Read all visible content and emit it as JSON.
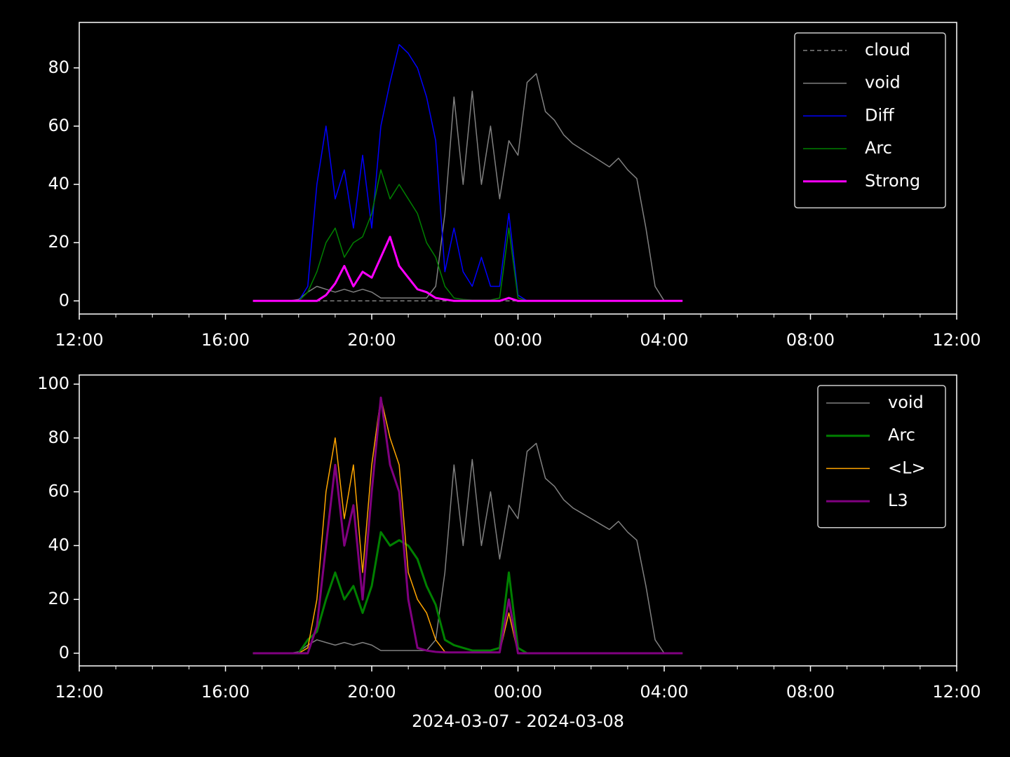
{
  "chart_data": [
    {
      "type": "line",
      "x": [
        "16:45",
        "17:00",
        "17:15",
        "17:30",
        "17:45",
        "18:00",
        "18:15",
        "18:30",
        "18:45",
        "19:00",
        "19:15",
        "19:30",
        "19:45",
        "20:00",
        "20:15",
        "20:30",
        "20:45",
        "21:00",
        "21:15",
        "21:30",
        "21:45",
        "22:00",
        "22:15",
        "22:30",
        "22:45",
        "23:00",
        "23:15",
        "23:30",
        "23:45",
        "00:00",
        "00:15",
        "00:30",
        "00:45",
        "01:00",
        "01:15",
        "01:30",
        "01:45",
        "02:00",
        "02:15",
        "02:30",
        "02:45",
        "03:00",
        "03:15",
        "03:30",
        "03:45",
        "04:00",
        "04:15",
        "04:30"
      ],
      "series": [
        {
          "name": "cloud",
          "color": "#808080",
          "style": "dashed",
          "width": 1.5,
          "values": [
            0,
            0,
            0,
            0,
            0,
            0,
            0,
            0,
            0,
            0,
            0,
            0,
            0,
            0,
            0,
            0,
            0,
            0,
            0,
            0,
            0,
            0,
            0,
            0,
            0,
            0,
            0,
            0,
            0,
            0,
            0,
            0,
            0,
            0,
            0,
            0,
            0,
            0,
            0,
            0,
            0,
            0,
            0,
            0,
            0,
            0,
            0,
            0
          ]
        },
        {
          "name": "void",
          "color": "#808080",
          "style": "solid",
          "width": 1.5,
          "values": [
            0,
            0,
            0,
            0,
            0,
            0.5,
            3,
            5,
            4,
            3,
            4,
            3,
            4,
            3,
            1,
            1,
            1,
            1,
            1,
            1,
            5,
            30,
            70,
            40,
            72,
            40,
            60,
            35,
            55,
            50,
            75,
            78,
            65,
            62,
            57,
            54,
            52,
            50,
            48,
            46,
            49,
            45,
            42,
            25,
            5,
            0,
            0,
            0
          ]
        },
        {
          "name": "Diff",
          "color": "#0000ff",
          "style": "solid",
          "width": 1.5,
          "values": [
            0,
            0,
            0,
            0,
            0,
            0,
            5,
            40,
            60,
            35,
            45,
            25,
            50,
            25,
            60,
            75,
            88,
            85,
            80,
            70,
            55,
            10,
            25,
            10,
            5,
            15,
            5,
            5,
            30,
            2,
            0,
            0,
            0,
            0,
            0,
            0,
            0,
            0,
            0,
            0,
            0,
            0,
            0,
            0,
            0,
            0,
            0,
            0
          ]
        },
        {
          "name": "Arc",
          "color": "#008000",
          "style": "solid",
          "width": 1.5,
          "values": [
            0,
            0,
            0,
            0,
            0,
            0,
            3,
            10,
            20,
            25,
            15,
            20,
            22,
            30,
            45,
            35,
            40,
            35,
            30,
            20,
            15,
            5,
            1,
            0.5,
            0.3,
            0.3,
            0.3,
            1,
            25,
            1,
            0,
            0,
            0,
            0,
            0,
            0,
            0,
            0,
            0,
            0,
            0,
            0,
            0,
            0,
            0,
            0,
            0,
            0
          ]
        },
        {
          "name": "Strong",
          "color": "#ff00ff",
          "style": "solid",
          "width": 3,
          "values": [
            0,
            0,
            0,
            0,
            0,
            0,
            0,
            0,
            2,
            6,
            12,
            5,
            10,
            8,
            15,
            22,
            12,
            8,
            4,
            3,
            1,
            0.5,
            0,
            0,
            0,
            0,
            0,
            0,
            1,
            0,
            0,
            0,
            0,
            0,
            0,
            0,
            0,
            0,
            0,
            0,
            0,
            0,
            0,
            0,
            0,
            0,
            0,
            0
          ]
        }
      ],
      "xlim": [
        "12:00",
        "12:00"
      ],
      "xticks": [
        "12:00",
        "16:00",
        "20:00",
        "00:00",
        "04:00",
        "08:00",
        "12:00"
      ],
      "xminorticks": [
        "13:00",
        "14:00",
        "15:00",
        "17:00",
        "18:00",
        "19:00",
        "21:00",
        "22:00",
        "23:00",
        "01:00",
        "02:00",
        "03:00",
        "05:00",
        "06:00",
        "07:00",
        "09:00",
        "10:00",
        "11:00"
      ],
      "ylim": [
        -4.5,
        95.6
      ],
      "yticks": [
        0,
        20,
        40,
        60,
        80
      ],
      "legend": "upper right"
    },
    {
      "type": "line",
      "x": [
        "16:45",
        "17:00",
        "17:15",
        "17:30",
        "17:45",
        "18:00",
        "18:15",
        "18:30",
        "18:45",
        "19:00",
        "19:15",
        "19:30",
        "19:45",
        "20:00",
        "20:15",
        "20:30",
        "20:45",
        "21:00",
        "21:15",
        "21:30",
        "21:45",
        "22:00",
        "22:15",
        "22:30",
        "22:45",
        "23:00",
        "23:15",
        "23:30",
        "23:45",
        "00:00",
        "00:15",
        "00:30",
        "00:45",
        "01:00",
        "01:15",
        "01:30",
        "01:45",
        "02:00",
        "02:15",
        "02:30",
        "02:45",
        "03:00",
        "03:15",
        "03:30",
        "03:45",
        "04:00",
        "04:15",
        "04:30"
      ],
      "series": [
        {
          "name": "void",
          "color": "#808080",
          "style": "solid",
          "width": 1.5,
          "values": [
            0,
            0,
            0,
            0,
            0,
            0.5,
            3,
            5,
            4,
            3,
            4,
            3,
            4,
            3,
            1,
            1,
            1,
            1,
            1,
            1,
            5,
            30,
            70,
            40,
            72,
            40,
            60,
            35,
            55,
            50,
            75,
            78,
            65,
            62,
            57,
            54,
            52,
            50,
            48,
            46,
            49,
            45,
            42,
            25,
            5,
            0,
            0,
            0
          ]
        },
        {
          "name": "Arc",
          "color": "#008000",
          "style": "solid",
          "width": 3,
          "values": [
            0,
            0,
            0,
            0,
            0,
            0,
            5,
            8,
            20,
            30,
            20,
            25,
            15,
            25,
            45,
            40,
            42,
            40,
            35,
            25,
            18,
            5,
            3,
            2,
            1,
            1,
            1,
            2,
            30,
            2,
            0,
            0,
            0,
            0,
            0,
            0,
            0,
            0,
            0,
            0,
            0,
            0,
            0,
            0,
            0,
            0,
            0,
            0
          ]
        },
        {
          "name": "<L>",
          "color": "#ffa500",
          "style": "solid",
          "width": 1.5,
          "values": [
            0,
            0,
            0,
            0,
            0,
            0,
            2,
            20,
            60,
            80,
            50,
            70,
            30,
            70,
            95,
            80,
            70,
            30,
            20,
            15,
            5,
            0.5,
            0.3,
            0.3,
            0.3,
            0.3,
            0.3,
            0.3,
            15,
            0,
            0,
            0,
            0,
            0,
            0,
            0,
            0,
            0,
            0,
            0,
            0,
            0,
            0,
            0,
            0,
            0,
            0,
            0
          ]
        },
        {
          "name": "L3",
          "color": "#800080",
          "style": "solid",
          "width": 3,
          "values": [
            0,
            0,
            0,
            0,
            0,
            0,
            0,
            10,
            40,
            70,
            40,
            55,
            20,
            60,
            95,
            70,
            60,
            20,
            2,
            1,
            0.5,
            0.3,
            0.3,
            0.3,
            0.3,
            0.3,
            0.3,
            0.3,
            20,
            0,
            0,
            0,
            0,
            0,
            0,
            0,
            0,
            0,
            0,
            0,
            0,
            0,
            0,
            0,
            0,
            0,
            0,
            0
          ]
        }
      ],
      "xlabel": "2024-03-07 - 2024-03-08",
      "xlim": [
        "12:00",
        "12:00"
      ],
      "xticks": [
        "12:00",
        "16:00",
        "20:00",
        "00:00",
        "04:00",
        "08:00",
        "12:00"
      ],
      "xminorticks": [
        "13:00",
        "14:00",
        "15:00",
        "17:00",
        "18:00",
        "19:00",
        "21:00",
        "22:00",
        "23:00",
        "01:00",
        "02:00",
        "03:00",
        "05:00",
        "06:00",
        "07:00",
        "09:00",
        "10:00",
        "11:00"
      ],
      "ylim": [
        -4.7,
        103.4
      ],
      "yticks": [
        0,
        20,
        40,
        60,
        80,
        100
      ],
      "legend": "upper right"
    }
  ]
}
